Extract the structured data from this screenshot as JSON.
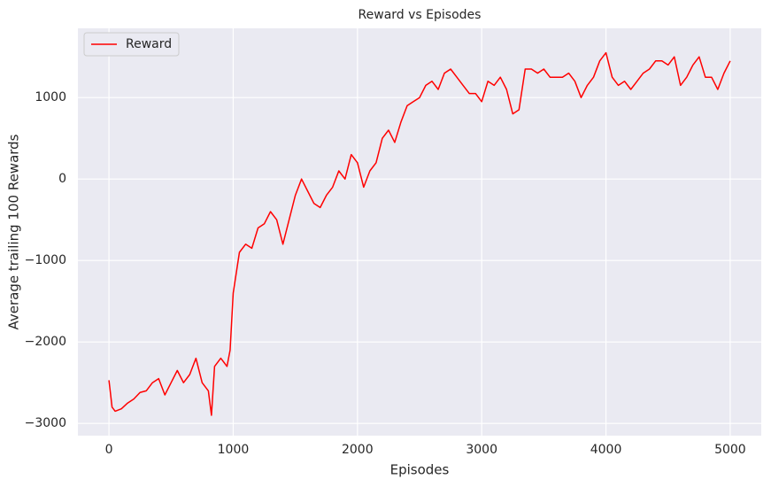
{
  "chart_data": {
    "type": "line",
    "title": "Reward vs Episodes",
    "x_label": "Episodes",
    "y_label": "Average trailing 100 Rewards",
    "x": [
      0,
      25,
      50,
      100,
      150,
      200,
      250,
      300,
      350,
      400,
      450,
      500,
      550,
      600,
      650,
      700,
      750,
      800,
      825,
      850,
      900,
      950,
      975,
      1000,
      1050,
      1100,
      1150,
      1200,
      1250,
      1300,
      1350,
      1400,
      1450,
      1500,
      1550,
      1600,
      1650,
      1700,
      1750,
      1800,
      1850,
      1900,
      1950,
      2000,
      2050,
      2100,
      2150,
      2200,
      2250,
      2300,
      2350,
      2400,
      2450,
      2500,
      2550,
      2600,
      2650,
      2700,
      2750,
      2800,
      2850,
      2900,
      2950,
      3000,
      3050,
      3100,
      3150,
      3200,
      3250,
      3300,
      3350,
      3400,
      3450,
      3500,
      3550,
      3600,
      3650,
      3700,
      3750,
      3800,
      3850,
      3900,
      3950,
      4000,
      4050,
      4100,
      4150,
      4200,
      4250,
      4300,
      4350,
      4400,
      4450,
      4500,
      4550,
      4600,
      4650,
      4700,
      4750,
      4800,
      4850,
      4900,
      4950,
      5000
    ],
    "series": [
      {
        "name": "Reward",
        "color": "#ff0000",
        "values": [
          -2470,
          -2800,
          -2850,
          -2820,
          -2750,
          -2700,
          -2620,
          -2600,
          -2500,
          -2450,
          -2650,
          -2500,
          -2350,
          -2500,
          -2400,
          -2200,
          -2500,
          -2600,
          -2900,
          -2300,
          -2200,
          -2300,
          -2100,
          -1400,
          -900,
          -800,
          -850,
          -600,
          -550,
          -400,
          -500,
          -800,
          -500,
          -200,
          0,
          -150,
          -300,
          -350,
          -200,
          -100,
          100,
          0,
          300,
          200,
          -100,
          100,
          200,
          500,
          600,
          450,
          700,
          900,
          950,
          1000,
          1150,
          1200,
          1100,
          1300,
          1350,
          1250,
          1150,
          1050,
          1050,
          950,
          1200,
          1150,
          1250,
          1100,
          800,
          850,
          1350,
          1350,
          1300,
          1350,
          1250,
          1250,
          1250,
          1300,
          1200,
          1000,
          1150,
          1250,
          1450,
          1550,
          1250,
          1150,
          1200,
          1100,
          1200,
          1300,
          1350,
          1450,
          1450,
          1400,
          1500,
          1150,
          1250,
          1400,
          1500,
          1250,
          1250,
          1100,
          1300,
          1450
        ]
      }
    ],
    "xlim": [
      -250,
      5250
    ],
    "ylim": [
      -3150,
      1850
    ],
    "xticks": [
      0,
      1000,
      2000,
      3000,
      4000,
      5000
    ],
    "yticks": [
      {
        "value": -3000,
        "label": "−3000"
      },
      {
        "value": -2000,
        "label": "−2000"
      },
      {
        "value": -1000,
        "label": "−1000"
      },
      0,
      1000
    ],
    "grid": true,
    "legend": "upper left"
  }
}
